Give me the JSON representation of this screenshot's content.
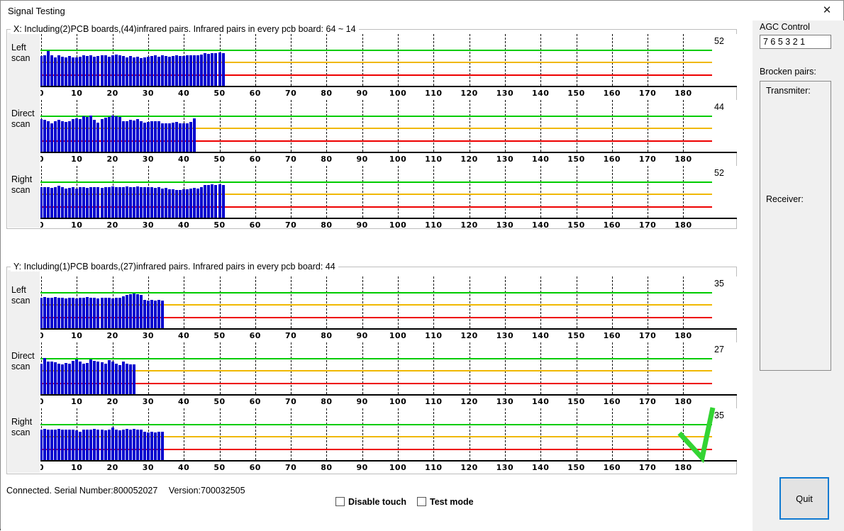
{
  "window": {
    "title": "Signal Testing",
    "close_icon": "✕"
  },
  "groups": [
    {
      "header": "X: Including(2)PCB boards,(44)infrared pairs.  Infrared pairs in every pcb board: 64 ~ 14"
    },
    {
      "header": "Y: Including(1)PCB boards,(27)infrared pairs.  Infrared pairs in every pcb board: 44"
    }
  ],
  "x_axis": {
    "ticks": [
      0,
      10,
      20,
      30,
      40,
      50,
      60,
      70,
      80,
      90,
      100,
      110,
      120,
      130,
      140,
      150,
      160,
      170,
      180
    ],
    "tick_step": 10
  },
  "chart_data": [
    {
      "type": "bar",
      "group": "X",
      "scan": "Left scan",
      "count_label": "52",
      "ylim": [
        0,
        100
      ],
      "guide_lines": {
        "green": 71,
        "yellow": 48,
        "red": 24
      },
      "values": [
        56,
        57,
        66,
        58,
        54,
        57,
        55,
        53,
        56,
        54,
        53,
        55,
        57,
        56,
        58,
        55,
        56,
        58,
        57,
        55,
        57,
        59,
        57,
        56,
        54,
        56,
        53,
        55,
        52,
        54,
        55,
        56,
        57,
        55,
        57,
        56,
        55,
        56,
        57,
        56,
        56,
        57,
        57,
        58,
        57,
        59,
        61,
        60,
        62,
        61,
        63,
        62
      ]
    },
    {
      "type": "bar",
      "group": "X",
      "scan": "Direct scan",
      "count_label": "44",
      "ylim": [
        0,
        100
      ],
      "guide_lines": {
        "green": 71,
        "yellow": 48,
        "red": 24
      },
      "values": [
        62,
        60,
        57,
        54,
        57,
        60,
        58,
        56,
        57,
        61,
        63,
        62,
        67,
        66,
        68,
        60,
        55,
        62,
        64,
        66,
        68,
        67,
        66,
        58,
        57,
        60,
        59,
        61,
        57,
        55,
        56,
        58,
        57,
        58,
        53,
        54,
        53,
        55,
        56,
        54,
        53,
        54,
        56,
        63
      ]
    },
    {
      "type": "bar",
      "group": "X",
      "scan": "Right scan",
      "count_label": "52",
      "ylim": [
        0,
        100
      ],
      "guide_lines": {
        "green": 71,
        "yellow": 48,
        "red": 24
      },
      "values": [
        57,
        58,
        57,
        56,
        58,
        60,
        57,
        55,
        56,
        57,
        55,
        57,
        58,
        56,
        57,
        58,
        57,
        56,
        58,
        57,
        59,
        58,
        57,
        58,
        59,
        57,
        58,
        59,
        58,
        57,
        58,
        57,
        56,
        57,
        55,
        56,
        54,
        53,
        52,
        52,
        53,
        54,
        55,
        56,
        55,
        57,
        62,
        61,
        63,
        62,
        63,
        61
      ]
    },
    {
      "type": "bar",
      "group": "Y",
      "scan": "Left scan",
      "count_label": "35",
      "ylim": [
        0,
        100
      ],
      "guide_lines": {
        "green": 71,
        "yellow": 48,
        "red": 24
      },
      "values": [
        57,
        59,
        58,
        57,
        59,
        58,
        57,
        56,
        58,
        57,
        56,
        57,
        58,
        59,
        58,
        57,
        56,
        57,
        58,
        57,
        56,
        58,
        57,
        60,
        63,
        64,
        65,
        64,
        63,
        53,
        52,
        53,
        52,
        53,
        52
      ]
    },
    {
      "type": "bar",
      "group": "Y",
      "scan": "Direct scan",
      "count_label": "27",
      "ylim": [
        0,
        100
      ],
      "guide_lines": {
        "green": 71,
        "yellow": 48,
        "red": 24
      },
      "values": [
        57,
        68,
        62,
        61,
        60,
        58,
        56,
        59,
        57,
        63,
        65,
        62,
        57,
        59,
        66,
        63,
        62,
        60,
        58,
        64,
        61,
        58,
        55,
        62,
        57,
        56,
        56
      ]
    },
    {
      "type": "bar",
      "group": "Y",
      "scan": "Right scan",
      "count_label": "35",
      "ylim": [
        0,
        100
      ],
      "guide_lines": {
        "green": 71,
        "yellow": 48,
        "red": 24
      },
      "values": [
        58,
        59,
        58,
        57,
        58,
        59,
        57,
        58,
        57,
        58,
        56,
        54,
        57,
        58,
        57,
        59,
        58,
        57,
        56,
        57,
        62,
        58,
        56,
        58,
        59,
        58,
        59,
        58,
        57,
        53,
        52,
        53,
        52,
        53,
        53
      ]
    }
  ],
  "colors": {
    "bar": "#0000ce",
    "green_line": "#00cc00",
    "yellow_line": "#f0b800",
    "red_line": "#ee0000",
    "focus_border": "#0f7ad1",
    "checkmark": "#33d433"
  },
  "agc": {
    "label": "AGC Control",
    "value": "7 6 5 3 2 1"
  },
  "broken_pairs": {
    "label": "Brocken pairs:",
    "transmitter_label": "Transmiter:",
    "receiver_label": "Receiver:"
  },
  "status": {
    "connected_serial": "Connected. Serial Number:800052027",
    "version": "Version:700032505"
  },
  "checkboxes": [
    {
      "label": "Disable touch",
      "checked": false
    },
    {
      "label": "Test mode",
      "checked": false
    }
  ],
  "quit_button": {
    "label": "Quit"
  }
}
